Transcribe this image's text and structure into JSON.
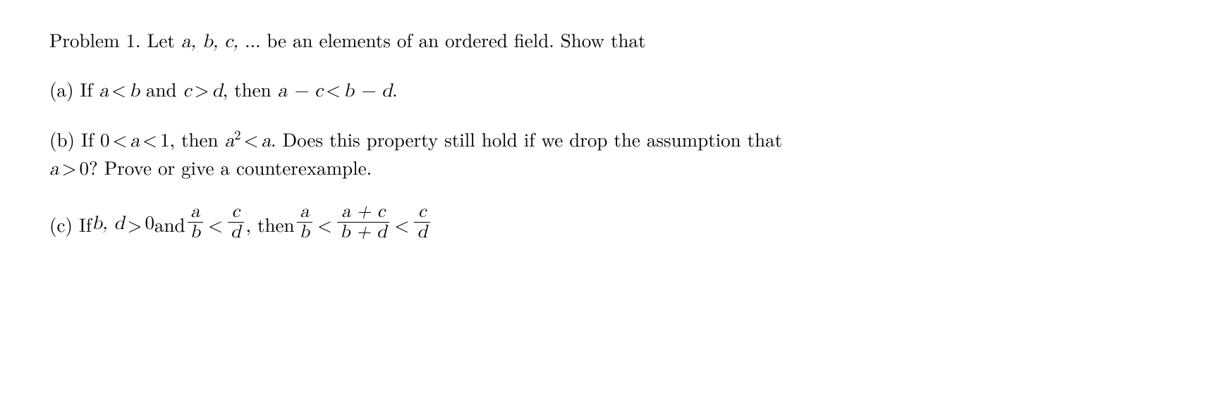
{
  "problem": {
    "heading_prefix": "Problem 1.  Let ",
    "heading_vars": "a, b, c, ...",
    "heading_suffix": " be an elements of an ordered field.  Show that"
  },
  "partA": {
    "label": "(a) If ",
    "ineq1_lhs": "a",
    "ineq1_op": "<",
    "ineq1_rhs": "b",
    "and": " and ",
    "ineq2_lhs": "c",
    "ineq2_op": ">",
    "ineq2_rhs": "d",
    "then": ", then ",
    "concl_lhs": "a − c",
    "concl_op": "<",
    "concl_rhs": "b − d",
    "period": "."
  },
  "partB": {
    "label": "(b) If ",
    "chain_0": "0",
    "chain_op1": "<",
    "chain_a": "a",
    "chain_op2": "<",
    "chain_1": "1",
    "then": ", then ",
    "sq_base": "a",
    "sq_exp": "2",
    "sq_op": "<",
    "sq_rhs": "a",
    "tail1": ".  Does this property still hold if we drop the assumption that",
    "line2_var": "a",
    "line2_op": ">",
    "line2_zero": "0",
    "line2_tail": "?  Prove or give a counterexample."
  },
  "partC": {
    "label": "(c) If ",
    "hyp_vars": "b, d",
    "hyp_op": ">",
    "hyp_zero": "0",
    "and": " and ",
    "f1_num": "a",
    "f1_den": "b",
    "lt1": "<",
    "f2_num": "c",
    "f2_den": "d",
    "comma_then": ",  then ",
    "f3_num": "a",
    "f3_den": "b",
    "lt2": "<",
    "f4_num": "a + c",
    "f4_den": "b + d",
    "lt3": "<",
    "f5_num": "c",
    "f5_den": "d"
  },
  "style": {
    "font_size_pt": 20,
    "text_color": "#000000",
    "background_color": "#ffffff"
  }
}
